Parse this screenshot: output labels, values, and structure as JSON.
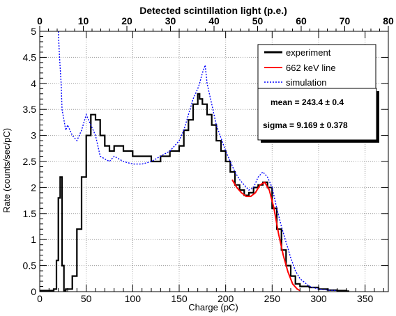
{
  "chart_data": {
    "type": "line",
    "xlabel": "Charge (pC)",
    "ylabel": "Rate (counts/sec/pC)",
    "top_axis_title": "Detected scintillation light (p.e.)",
    "xlim": [
      0,
      375
    ],
    "ylim": [
      0,
      5
    ],
    "top_xlim": [
      0,
      80
    ],
    "x_ticks": [
      0,
      50,
      100,
      150,
      200,
      250,
      300,
      350
    ],
    "y_ticks": [
      0,
      0.5,
      1,
      1.5,
      2,
      2.5,
      3,
      3.5,
      4,
      4.5,
      5
    ],
    "top_ticks": [
      0,
      10,
      20,
      30,
      40,
      50,
      60,
      70,
      80
    ],
    "grid": true,
    "legend_position": "top-right",
    "series": [
      {
        "name": "experiment",
        "color": "#000000",
        "style": "solid-histogram",
        "x": [
          0,
          5,
          10,
          15,
          18,
          20,
          22,
          24,
          26,
          28,
          30,
          35,
          40,
          45,
          50,
          55,
          60,
          65,
          70,
          75,
          80,
          90,
          100,
          110,
          120,
          130,
          140,
          150,
          155,
          160,
          165,
          170,
          172,
          175,
          180,
          185,
          190,
          195,
          200,
          205,
          210,
          215,
          220,
          225,
          230,
          235,
          240,
          245,
          250,
          255,
          260,
          265,
          270,
          275,
          280,
          290,
          300,
          310,
          320,
          330
        ],
        "y": [
          0.02,
          0.02,
          0.02,
          0.05,
          0.6,
          1.8,
          2.2,
          0.5,
          0.02,
          0.05,
          0.05,
          0.3,
          1.2,
          2.2,
          3.0,
          3.4,
          3.3,
          3.0,
          2.8,
          2.7,
          2.8,
          2.7,
          2.6,
          2.6,
          2.5,
          2.6,
          2.7,
          2.8,
          3.1,
          3.3,
          3.6,
          3.8,
          3.7,
          3.6,
          3.4,
          3.2,
          2.9,
          2.7,
          2.5,
          2.3,
          2.05,
          1.95,
          1.85,
          1.9,
          2.0,
          2.05,
          2.1,
          2.0,
          1.6,
          1.2,
          0.8,
          0.5,
          0.3,
          0.15,
          0.1,
          0.08,
          0.05,
          0.03,
          0.02,
          0.01
        ]
      },
      {
        "name": "662 keV line",
        "color": "#ff0000",
        "style": "solid",
        "x": [
          207,
          212,
          217,
          222,
          227,
          232,
          237,
          242,
          247,
          252,
          257,
          262,
          267,
          272,
          277,
          280
        ],
        "y": [
          2.15,
          2.0,
          1.9,
          1.83,
          1.83,
          1.9,
          2.05,
          2.1,
          1.95,
          1.6,
          1.1,
          0.7,
          0.38,
          0.15,
          0.05,
          0.02
        ]
      },
      {
        "name": "simulation",
        "color": "#0000ff",
        "style": "dotted",
        "x": [
          20,
          21,
          22,
          23,
          24,
          26,
          28,
          30,
          35,
          40,
          45,
          50,
          55,
          60,
          65,
          70,
          75,
          80,
          90,
          100,
          110,
          120,
          130,
          140,
          150,
          155,
          160,
          165,
          170,
          172,
          175,
          178,
          180,
          185,
          190,
          195,
          200,
          205,
          210,
          215,
          220,
          225,
          230,
          235,
          240,
          245,
          250,
          255,
          260,
          265,
          270,
          275,
          280,
          290,
          300,
          310,
          320
        ],
        "y": [
          5.0,
          4.6,
          4.3,
          4.0,
          3.5,
          3.3,
          3.1,
          3.2,
          3.0,
          2.9,
          3.1,
          3.4,
          3.2,
          3.0,
          2.6,
          2.55,
          2.5,
          2.6,
          2.5,
          2.45,
          2.45,
          2.5,
          2.6,
          2.7,
          2.9,
          3.1,
          3.4,
          3.7,
          3.9,
          4.0,
          4.2,
          4.35,
          4.0,
          3.6,
          3.2,
          2.95,
          2.7,
          2.5,
          2.3,
          2.15,
          2.05,
          1.95,
          2.0,
          2.2,
          2.3,
          2.2,
          2.0,
          1.6,
          1.25,
          0.95,
          0.65,
          0.4,
          0.25,
          0.1,
          0.05,
          0.03,
          0.02
        ]
      }
    ],
    "stats_box": {
      "mean_label": "mean = 243.4",
      "mean_err": "± 0.4",
      "sigma_label": "sigma = 9.169",
      "sigma_err": "± 0.378"
    }
  }
}
